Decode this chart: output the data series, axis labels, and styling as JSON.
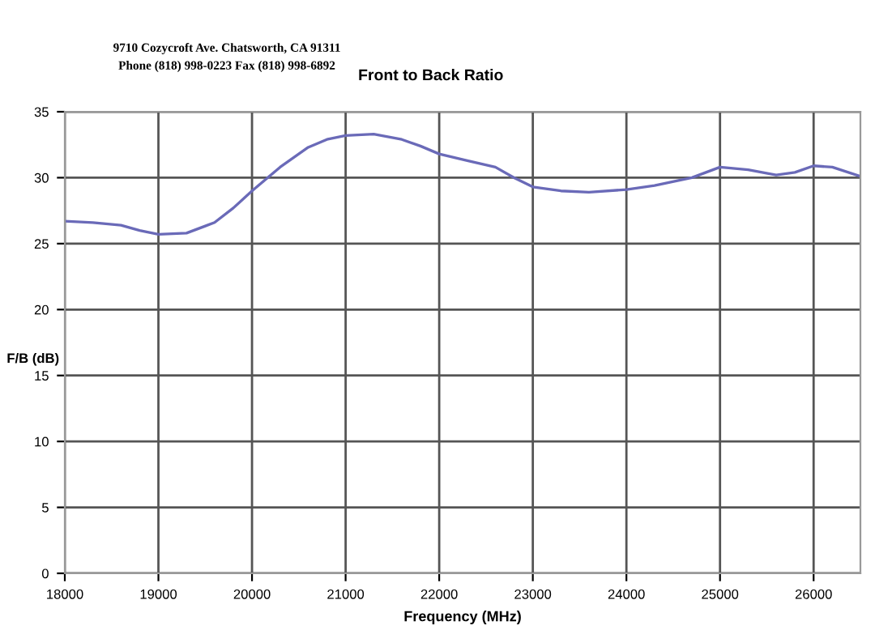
{
  "chart_data": {
    "type": "line",
    "title": "Front to Back Ratio",
    "xlabel": "Frequency (MHz)",
    "ylabel": "F/B (dB)",
    "annotations": [
      "9710 Cozycroft Ave. Chatsworth, CA 91311",
      "Phone (818) 998-0223 Fax (818) 998-6892"
    ],
    "series": [
      {
        "color": "#6a6ab8",
        "x": [
          18000,
          18300,
          18600,
          18800,
          19000,
          19300,
          19600,
          19800,
          20000,
          20300,
          20600,
          20800,
          21000,
          21300,
          21600,
          21800,
          22000,
          22300,
          22600,
          22800,
          23000,
          23300,
          23600,
          24000,
          24300,
          24700,
          25000,
          25300,
          25600,
          25800,
          26000,
          26200,
          26500
        ],
        "values": [
          26.7,
          26.6,
          26.4,
          26.0,
          25.7,
          25.8,
          26.6,
          27.7,
          29.0,
          30.8,
          32.3,
          32.9,
          33.2,
          33.3,
          32.9,
          32.4,
          31.8,
          31.3,
          30.8,
          30.0,
          29.3,
          29.0,
          28.9,
          29.1,
          29.4,
          30.0,
          30.8,
          30.6,
          30.2,
          30.4,
          30.9,
          30.8,
          30.1
        ]
      }
    ],
    "xlim": [
      18000,
      26500
    ],
    "xticks": [
      18000,
      19000,
      20000,
      21000,
      22000,
      23000,
      24000,
      25000,
      26000
    ],
    "ylim": [
      0,
      35
    ],
    "yticks": [
      0,
      5,
      10,
      15,
      20,
      25,
      30,
      35
    ],
    "grid": true,
    "legend": false,
    "marker": "none",
    "line_style": "solid"
  }
}
